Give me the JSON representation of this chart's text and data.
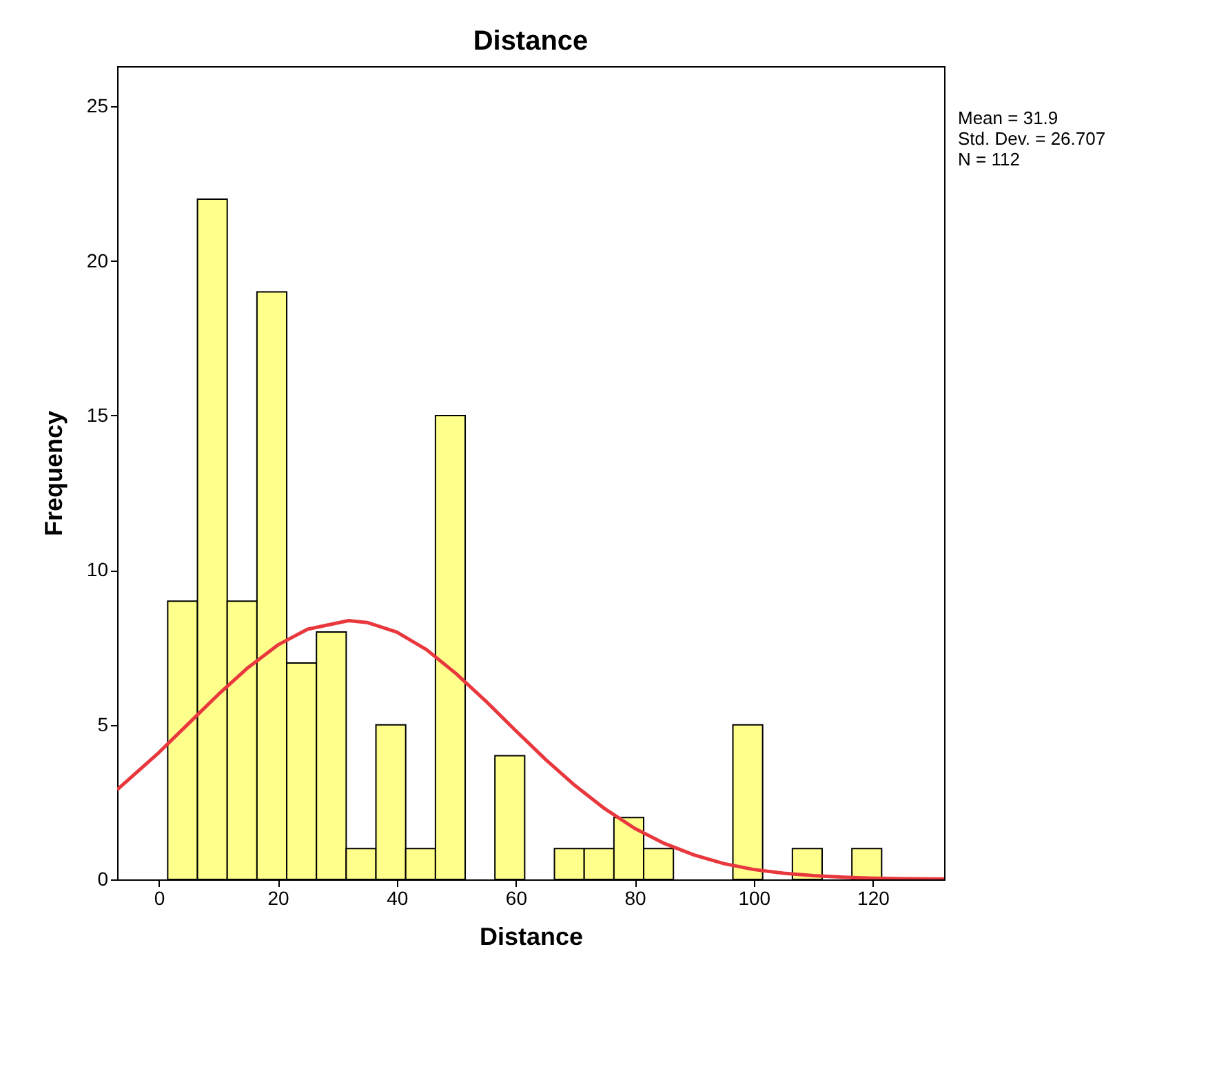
{
  "chart_data": {
    "type": "histogram",
    "title": "Distance",
    "xlabel": "Distance",
    "ylabel": "Frequency",
    "bins": [
      1.5,
      6.5,
      11.5,
      16.5,
      21.5,
      26.5,
      31.5,
      36.5,
      41.5,
      46.5,
      51.5,
      56.5,
      61.5,
      66.5,
      71.5,
      76.5,
      81.5,
      86.5,
      91.5,
      96.5,
      101.5,
      106.5,
      111.5,
      116.5,
      121.5
    ],
    "series": [
      {
        "color": "#ffff8c",
        "values": [
          9,
          22,
          9,
          19,
          7,
          8,
          1,
          5,
          1,
          15,
          0,
          4,
          0,
          1,
          1,
          2,
          1,
          0,
          0,
          5,
          0,
          1,
          0,
          1
        ]
      },
      {
        "type": "line",
        "color": "#e8383d",
        "x": [
          -7,
          0,
          5,
          10,
          15,
          20,
          25,
          31.9,
          35,
          40,
          45,
          50,
          55,
          60,
          65,
          70,
          75,
          80,
          85,
          90,
          95,
          100,
          105,
          110,
          115,
          120,
          125,
          132
        ],
        "values": [
          2.9,
          4.1,
          5.04,
          5.98,
          6.85,
          7.58,
          8.09,
          8.37,
          8.31,
          8.0,
          7.43,
          6.65,
          5.76,
          4.81,
          3.88,
          3.03,
          2.28,
          1.65,
          1.16,
          0.79,
          0.51,
          0.32,
          0.2,
          0.12,
          0.07,
          0.04,
          0.02,
          0.01
        ]
      }
    ],
    "annotations": [
      "Mean = 31.9",
      "Std. Dev. = 26.707",
      "N = 112"
    ],
    "xlim": [
      -7,
      132
    ],
    "xticks": [
      0,
      20,
      40,
      60,
      80,
      100,
      120
    ],
    "ylim": [
      0,
      26.3
    ],
    "yticks": [
      0,
      5,
      10,
      15,
      20,
      25
    ],
    "grid": false,
    "marker": "none",
    "line_style": "solid"
  }
}
